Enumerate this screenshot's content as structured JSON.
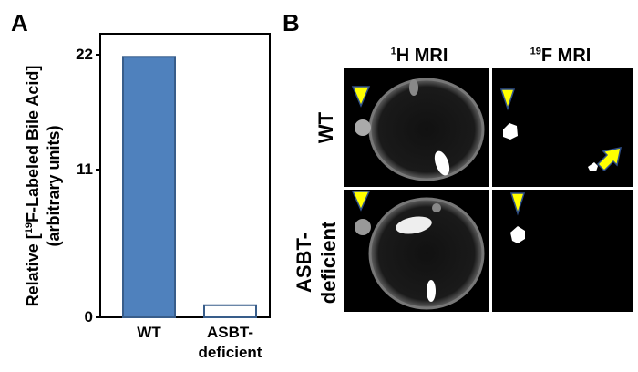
{
  "panel_a": {
    "letter": "A"
  },
  "panel_b": {
    "letter": "B",
    "columns": [
      {
        "sup": "1",
        "label": "H MRI"
      },
      {
        "sup": "19",
        "label": "F MRI"
      }
    ],
    "rows": [
      "WT",
      "ASBT-deficient"
    ],
    "row_lines": [
      [
        "WT"
      ],
      [
        "ASBT-",
        "deficient"
      ]
    ],
    "marker_color": "#ffff00",
    "marker_outline": "#2f4f8a"
  },
  "chart_data": {
    "type": "bar",
    "categories": [
      "WT",
      "ASBT-deficient"
    ],
    "category_lines": [
      [
        "WT"
      ],
      [
        "ASBT-",
        "deficient"
      ]
    ],
    "values": [
      21.8,
      0.9
    ],
    "ylabel_line1_pre": "Relative [",
    "ylabel_sup": "19",
    "ylabel_line1_post": "F-Labeled Bile Acid]",
    "ylabel_line2": "(arbitrary units)",
    "yticks": [
      "0",
      "11",
      "22"
    ],
    "ylim": [
      0,
      22
    ],
    "bar_fills": [
      "#4f81bd",
      "#ffffff"
    ],
    "bar_stroke": "#385d8a",
    "grid": false
  }
}
